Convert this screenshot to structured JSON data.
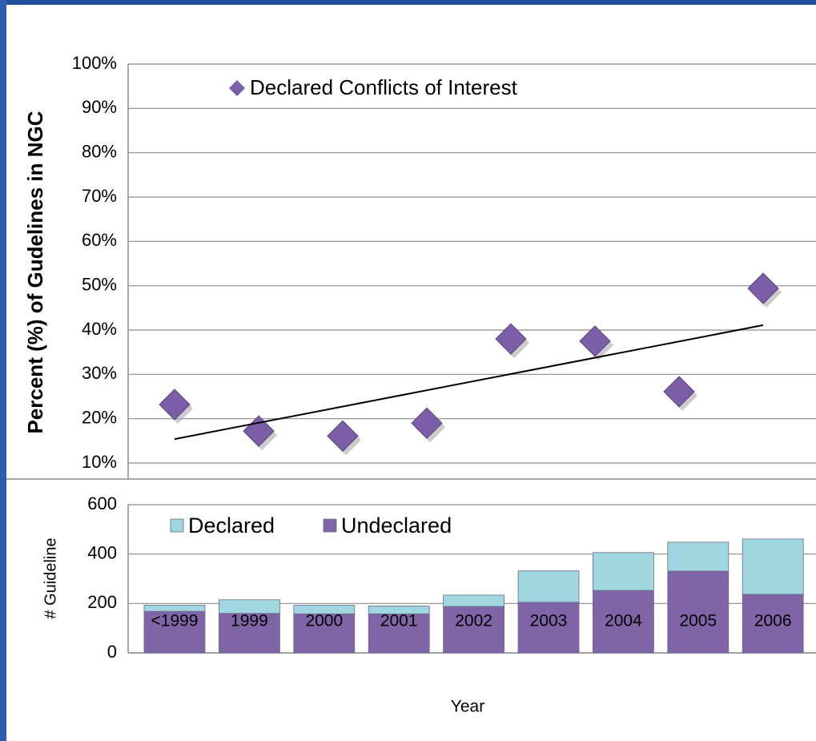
{
  "chart_data": [
    {
      "type": "scatter",
      "y_label": "Percent (%) of Gudelines in NGC",
      "categories": [
        null,
        null,
        null,
        null,
        null,
        null,
        null,
        null
      ],
      "series": [
        {
          "name": "Declared Conflicts of Interest",
          "color": "#7b5ea7",
          "values": [
            23.2,
            17.2,
            16.1,
            19,
            38,
            37.5,
            26.1,
            49.4
          ]
        }
      ],
      "trendline": [
        15.4,
        41.1
      ],
      "ylim": [
        10,
        100
      ],
      "yticks": [
        {
          "value": 10,
          "label": "10%"
        },
        {
          "value": 20,
          "label": "20%"
        },
        {
          "value": 30,
          "label": "30%"
        },
        {
          "value": 40,
          "label": "40%"
        },
        {
          "value": 50,
          "label": "50%"
        },
        {
          "value": 60,
          "label": "60%"
        },
        {
          "value": 70,
          "label": "70%"
        },
        {
          "value": 80,
          "label": "80%"
        },
        {
          "value": 90,
          "label": "90%"
        },
        {
          "value": 100,
          "label": "100%"
        }
      ],
      "grid": true
    },
    {
      "type": "bar",
      "y_label": "# Guideline",
      "x_label": "Year",
      "categories": [
        "<1999",
        "1999",
        "2000",
        "2001",
        "2002",
        "2003",
        "2004",
        "2005",
        "2006"
      ],
      "series": [
        {
          "name": "Declared",
          "color": "#9fd6df",
          "values": [
            25,
            55,
            35,
            32,
            46,
            127,
            153,
            117,
            224
          ]
        },
        {
          "name": "Undeclared",
          "color": "#8064a8",
          "values": [
            168,
            160,
            158,
            158,
            188,
            205,
            253,
            331,
            237
          ]
        }
      ],
      "stacked": true,
      "ylim": [
        0,
        600
      ],
      "yticks": [
        0,
        200,
        400,
        600
      ],
      "grid": true
    }
  ]
}
